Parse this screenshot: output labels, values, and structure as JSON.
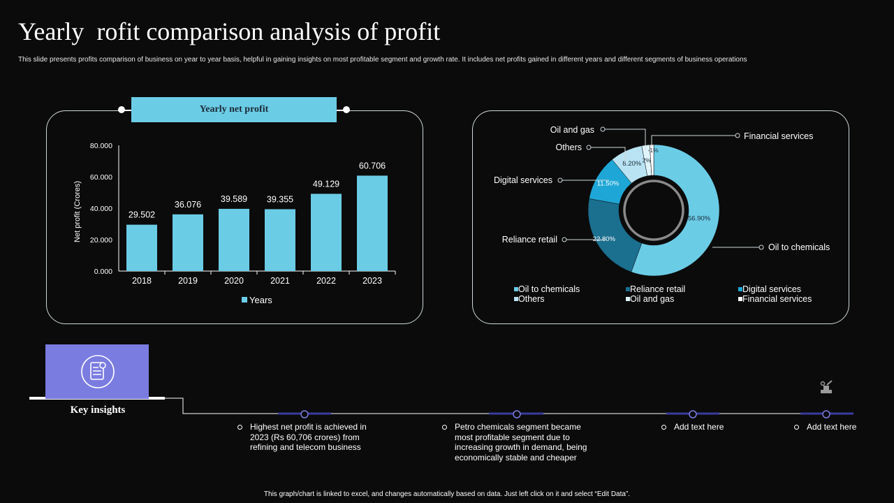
{
  "slide": {
    "title": "Yearly  rofit comparison analysis of profit",
    "subtitle": "This slide presents profits comparison of business on year to year basis, helpful in  gaining insights on most profitable segment and growth rate. It includes net profits gained in different years and different segments of business operations",
    "footer": "This graph/chart is linked to excel, and changes automatically based on data.  Just left click on it and select “Edit Data”."
  },
  "bar_panel": {
    "header": "Yearly net profit"
  },
  "colors": {
    "bar": "#6bcce6",
    "background": "#0b0b0b",
    "accent": "#7b7ce0"
  },
  "chart_data": [
    {
      "type": "bar",
      "categories": [
        "2018",
        "2019",
        "2020",
        "2021",
        "2022",
        "2023"
      ],
      "series": [
        {
          "name": "Years",
          "values": [
            29.502,
            36.076,
            39.589,
            39.355,
            49.129,
            60.706
          ]
        }
      ],
      "value_labels": [
        "29.502",
        "36.076",
        "39.589",
        "39.355",
        "49.129",
        "60.706"
      ],
      "ylabel": "Net profit (Crores)",
      "xlabel": "",
      "ylim": [
        0,
        80
      ],
      "yticks": [
        "0.000",
        "20.000",
        "40.000",
        "60.000",
        "80.000"
      ],
      "legend_position": "bottom",
      "grid": false
    },
    {
      "type": "pie",
      "donut": true,
      "slices": [
        {
          "name": "Oil to chemicals",
          "value": 56.9,
          "label": "56.90%",
          "color": "#6bcce6"
        },
        {
          "name": "Reliance retail",
          "value": 22.8,
          "label": "22.80%",
          "color": "#1b6f8f"
        },
        {
          "name": "Digital services",
          "value": 11.5,
          "label": "11.50%",
          "color": "#1ea7d6"
        },
        {
          "name": "Others",
          "value": 8.2,
          "label": "8.20%",
          "color": "#b9e3f2"
        },
        {
          "name": "Oil and gas",
          "value": 2,
          "label": "2%",
          "color": "#dff4fb"
        },
        {
          "name": "Financial services",
          "value": -1,
          "label": "-1%",
          "color": "#ffffff"
        }
      ],
      "legend_position": "bottom"
    }
  ],
  "insights": {
    "label": "Key insights",
    "items": [
      "Highest net profit is achieved in 2023 (Rs 60,706 crores) from refining and telecom business",
      "Petro chemicals segment became most profitable segment due to increasing growth in demand, being economically stable and cheaper",
      "Add text here",
      "Add text here"
    ]
  }
}
